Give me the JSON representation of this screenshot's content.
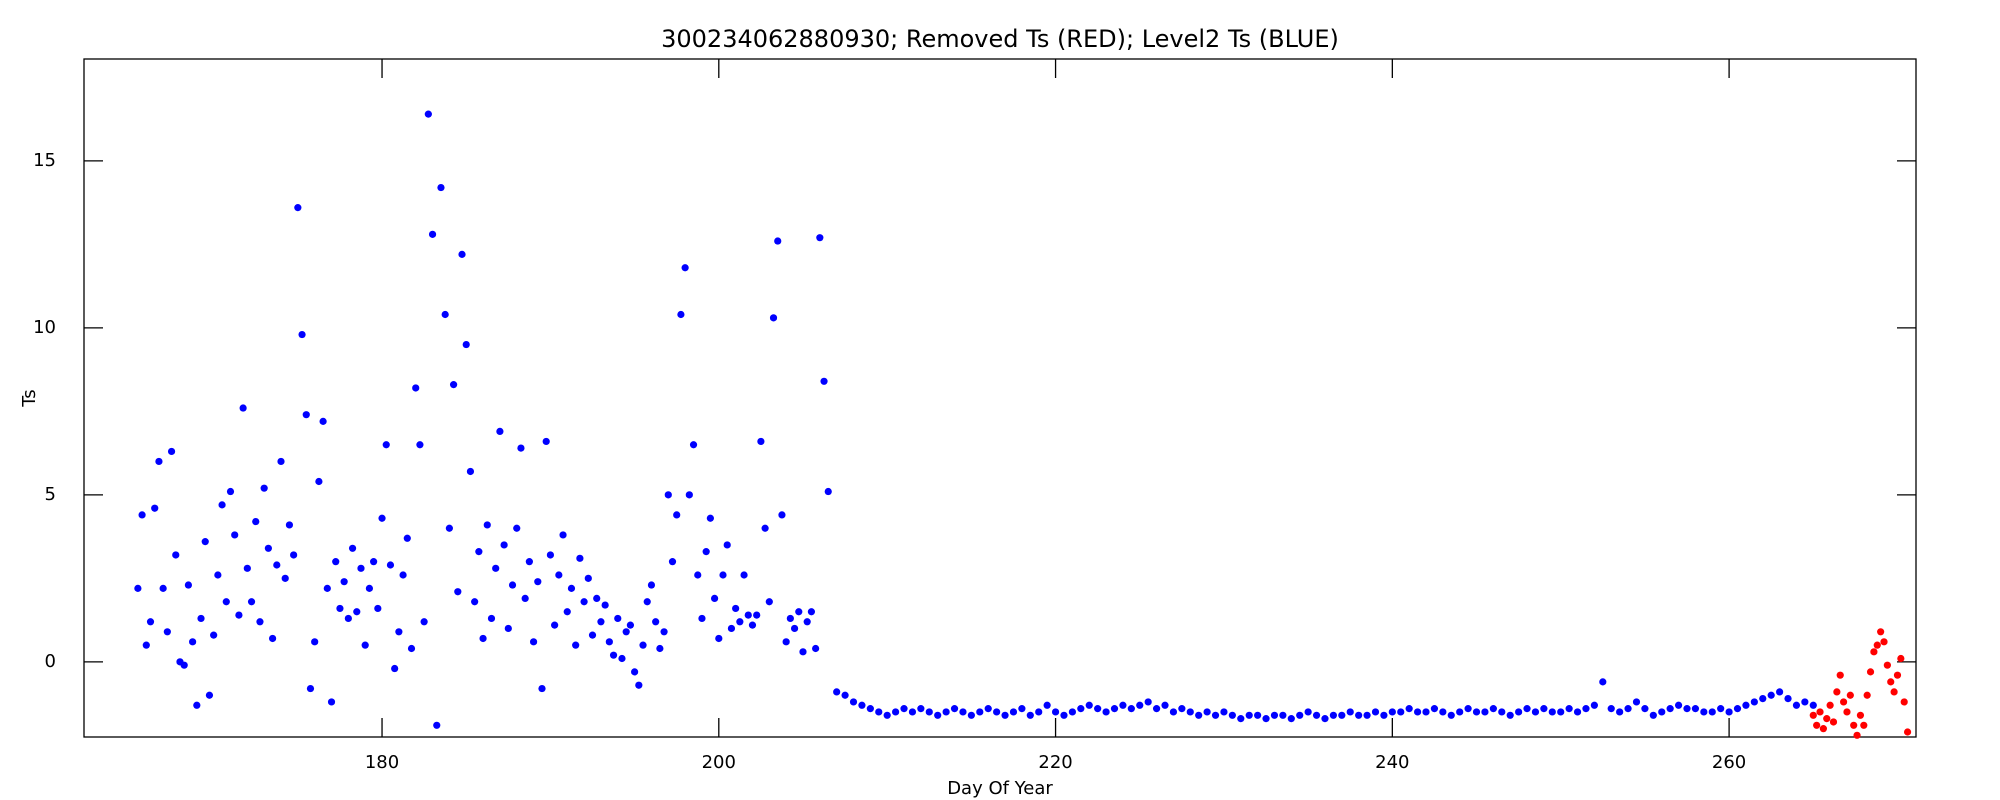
{
  "chart_data": {
    "type": "scatter",
    "title": "300234062880930; Removed Ts (RED); Level2 Ts (BLUE)",
    "x_label": "Day Of Year",
    "y_label": "Ts",
    "xlim": [
      162.3,
      271.1
    ],
    "ylim": [
      -2.25,
      18.05
    ],
    "xticks": [
      180,
      200,
      220,
      240,
      260
    ],
    "yticks": [
      0,
      5,
      10,
      15
    ],
    "grid": false,
    "series": [
      {
        "color": "#0000ff",
        "x": [
          165.5,
          165.75,
          166,
          166.25,
          166.5,
          166.75,
          167,
          167.25,
          167.5,
          167.75,
          168,
          168.25,
          168.5,
          168.75,
          169,
          169.25,
          169.5,
          169.75,
          170,
          170.25,
          170.5,
          170.75,
          171,
          171.25,
          171.5,
          171.75,
          172,
          172.25,
          172.5,
          172.75,
          173,
          173.25,
          173.5,
          173.75,
          174,
          174.25,
          174.5,
          174.75,
          175,
          175.25,
          175.5,
          175.75,
          176,
          176.25,
          176.5,
          176.75,
          177,
          177.25,
          177.5,
          177.75,
          178,
          178.25,
          178.5,
          178.75,
          179,
          179.25,
          179.5,
          179.75,
          180,
          180.25,
          180.5,
          180.75,
          181,
          181.25,
          181.5,
          181.75,
          182,
          182.25,
          182.5,
          182.75,
          183,
          183.25,
          183.5,
          183.75,
          184,
          184.25,
          184.5,
          184.75,
          185,
          185.25,
          185.5,
          185.75,
          186,
          186.25,
          186.5,
          186.75,
          187,
          187.25,
          187.5,
          187.75,
          188,
          188.25,
          188.5,
          188.75,
          189,
          189.25,
          189.5,
          189.75,
          190,
          190.25,
          190.5,
          190.75,
          191,
          191.25,
          191.5,
          191.75,
          192,
          192.25,
          192.5,
          192.75,
          193,
          193.25,
          193.5,
          193.75,
          194,
          194.25,
          194.5,
          194.75,
          195,
          195.25,
          195.5,
          195.75,
          196,
          196.25,
          196.5,
          196.75,
          197,
          197.25,
          197.5,
          197.75,
          198,
          198.25,
          198.5,
          198.75,
          199,
          199.25,
          199.5,
          199.75,
          200,
          200.25,
          200.5,
          200.75,
          201,
          201.25,
          201.5,
          201.75,
          202,
          202.25,
          202.5,
          202.75,
          203,
          203.25,
          203.5,
          203.75,
          204,
          204.25,
          204.5,
          204.75,
          205,
          205.25,
          205.5,
          205.75,
          206,
          206.25,
          206.5,
          207,
          207.5,
          208,
          208.5,
          209,
          209.5,
          210,
          210.5,
          211,
          211.5,
          212,
          212.5,
          213,
          213.5,
          214,
          214.5,
          215,
          215.5,
          216,
          216.5,
          217,
          217.5,
          218,
          218.5,
          219,
          219.5,
          220,
          220.5,
          221,
          221.5,
          222,
          222.5,
          223,
          223.5,
          224,
          224.5,
          225,
          225.5,
          226,
          226.5,
          227,
          227.5,
          228,
          228.5,
          229,
          229.5,
          230,
          230.5,
          231,
          231.5,
          232,
          232.5,
          233,
          233.5,
          234,
          234.5,
          235,
          235.5,
          236,
          236.5,
          237,
          237.5,
          238,
          238.5,
          239,
          239.5,
          240,
          240.5,
          241,
          241.5,
          242,
          242.5,
          243,
          243.5,
          244,
          244.5,
          245,
          245.5,
          246,
          246.5,
          247,
          247.5,
          248,
          248.5,
          249,
          249.5,
          250,
          250.5,
          251,
          251.5,
          252,
          252.5,
          253,
          253.5,
          254,
          254.5,
          255,
          255.5,
          256,
          256.5,
          257,
          257.5,
          258,
          258.5,
          259,
          259.5,
          260,
          260.5,
          261,
          261.5,
          262,
          262.5,
          263,
          263.5,
          264,
          264.5,
          265
        ],
        "values": [
          2.2,
          4.4,
          0.5,
          1.2,
          4.6,
          6.0,
          2.2,
          0.9,
          6.3,
          3.2,
          0.0,
          -0.1,
          2.3,
          0.6,
          -1.3,
          1.3,
          3.6,
          -1.0,
          0.8,
          2.6,
          4.7,
          1.8,
          5.1,
          3.8,
          1.4,
          7.6,
          2.8,
          1.8,
          4.2,
          1.2,
          5.2,
          3.4,
          0.7,
          2.9,
          6.0,
          2.5,
          4.1,
          3.2,
          13.6,
          9.8,
          7.4,
          -0.8,
          0.6,
          5.4,
          7.2,
          2.2,
          -1.2,
          3.0,
          1.6,
          2.4,
          1.3,
          3.4,
          1.5,
          2.8,
          0.5,
          2.2,
          3.0,
          1.6,
          4.3,
          6.5,
          2.9,
          -0.2,
          0.9,
          2.6,
          3.7,
          0.4,
          8.2,
          6.5,
          1.2,
          16.4,
          12.8,
          -1.9,
          14.2,
          10.4,
          4.0,
          8.3,
          2.1,
          12.2,
          9.5,
          5.7,
          1.8,
          3.3,
          0.7,
          4.1,
          1.3,
          2.8,
          6.9,
          3.5,
          1.0,
          2.3,
          4.0,
          6.4,
          1.9,
          3.0,
          0.6,
          2.4,
          -0.8,
          6.6,
          3.2,
          1.1,
          2.6,
          3.8,
          1.5,
          2.2,
          0.5,
          3.1,
          1.8,
          2.5,
          0.8,
          1.9,
          1.2,
          1.7,
          0.6,
          0.2,
          1.3,
          0.1,
          0.9,
          1.1,
          -0.3,
          -0.7,
          0.5,
          1.8,
          2.3,
          1.2,
          0.4,
          0.9,
          5.0,
          3.0,
          4.4,
          10.4,
          11.8,
          5.0,
          6.5,
          2.6,
          1.3,
          3.3,
          4.3,
          1.9,
          0.7,
          2.6,
          3.5,
          1.0,
          1.6,
          1.2,
          2.6,
          1.4,
          1.1,
          1.4,
          6.6,
          4.0,
          1.8,
          10.3,
          12.6,
          4.4,
          0.6,
          1.3,
          1.0,
          1.5,
          0.3,
          1.2,
          1.5,
          0.4,
          12.7,
          8.4,
          5.1,
          -0.9,
          -1.0,
          -1.2,
          -1.3,
          -1.4,
          -1.5,
          -1.6,
          -1.5,
          -1.4,
          -1.5,
          -1.4,
          -1.5,
          -1.6,
          -1.5,
          -1.4,
          -1.5,
          -1.6,
          -1.5,
          -1.4,
          -1.5,
          -1.6,
          -1.5,
          -1.4,
          -1.6,
          -1.5,
          -1.3,
          -1.5,
          -1.6,
          -1.5,
          -1.4,
          -1.3,
          -1.4,
          -1.5,
          -1.4,
          -1.3,
          -1.4,
          -1.3,
          -1.2,
          -1.4,
          -1.3,
          -1.5,
          -1.4,
          -1.5,
          -1.6,
          -1.5,
          -1.6,
          -1.5,
          -1.6,
          -1.7,
          -1.6,
          -1.6,
          -1.7,
          -1.6,
          -1.6,
          -1.7,
          -1.6,
          -1.5,
          -1.6,
          -1.7,
          -1.6,
          -1.6,
          -1.5,
          -1.6,
          -1.6,
          -1.5,
          -1.6,
          -1.5,
          -1.5,
          -1.4,
          -1.5,
          -1.5,
          -1.4,
          -1.5,
          -1.6,
          -1.5,
          -1.4,
          -1.5,
          -1.5,
          -1.4,
          -1.5,
          -1.6,
          -1.5,
          -1.4,
          -1.5,
          -1.4,
          -1.5,
          -1.5,
          -1.4,
          -1.5,
          -1.4,
          -1.3,
          -0.6,
          -1.4,
          -1.5,
          -1.4,
          -1.2,
          -1.4,
          -1.6,
          -1.5,
          -1.4,
          -1.3,
          -1.4,
          -1.4,
          -1.5,
          -1.5,
          -1.4,
          -1.5,
          -1.4,
          -1.3,
          -1.2,
          -1.1,
          -1.0,
          -0.9,
          -1.1,
          -1.3,
          -1.2,
          -1.3
        ]
      },
      {
        "color": "#ff0000",
        "x": [
          265.0,
          265.2,
          265.4,
          265.6,
          265.8,
          266.0,
          266.2,
          266.4,
          266.6,
          266.8,
          267.0,
          267.2,
          267.4,
          267.6,
          267.8,
          268.0,
          268.2,
          268.4,
          268.6,
          268.8,
          269.0,
          269.2,
          269.4,
          269.6,
          269.8,
          270.0,
          270.2,
          270.4,
          270.6
        ],
        "values": [
          -1.6,
          -1.9,
          -1.5,
          -2.0,
          -1.7,
          -1.3,
          -1.8,
          -0.9,
          -0.4,
          -1.2,
          -1.5,
          -1.0,
          -1.9,
          -2.2,
          -1.6,
          -1.9,
          -1.0,
          -0.3,
          0.3,
          0.5,
          0.9,
          0.6,
          -0.1,
          -0.6,
          -0.9,
          -0.4,
          0.1,
          -1.2,
          -2.1
        ]
      }
    ]
  }
}
